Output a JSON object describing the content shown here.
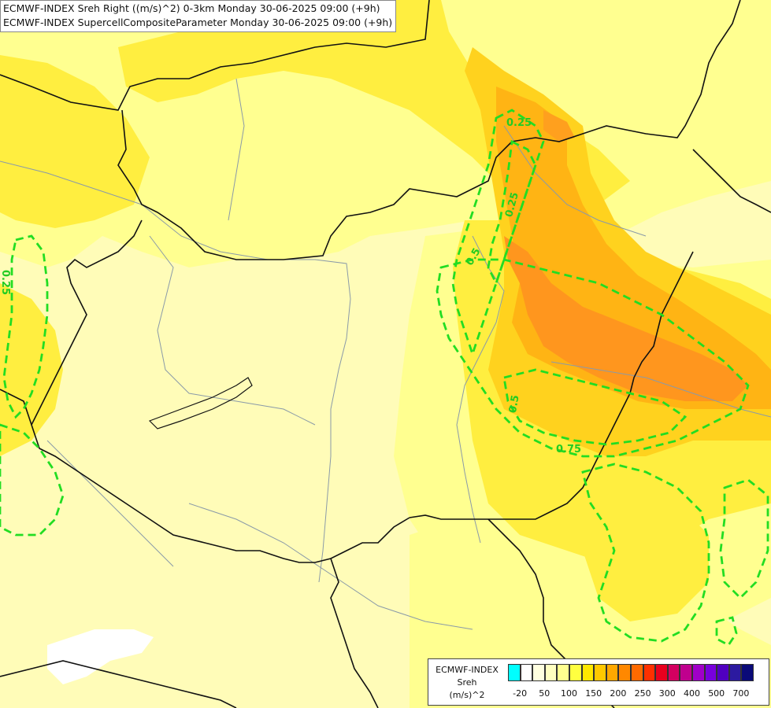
{
  "header": {
    "line1": "ECMWF-INDEX Sreh Right ((m/s)^2) 0-3km Monday 30-06-2025 09:00 (+9h)",
    "line2": "ECMWF-INDEX SupercellCompositeParameter Monday 30-06-2025 09:00 (+9h)"
  },
  "contour_labels": [
    "0.25",
    "0.25",
    "0.5",
    "0.5",
    "0.75",
    "0.25"
  ],
  "legend": {
    "title_lines": [
      "ECMWF-INDEX",
      "Sreh",
      "(m/s)^2"
    ],
    "colors": [
      "#00ffff",
      "#ffffff",
      "#ffffe0",
      "#ffffc0",
      "#ffff90",
      "#ffff40",
      "#ffe800",
      "#ffc800",
      "#ffa800",
      "#ff8800",
      "#ff6a00",
      "#ff3000",
      "#e8001e",
      "#d40060",
      "#c0008e",
      "#a000c8",
      "#7800dc",
      "#5000c0",
      "#2c1aa0",
      "#0a0a78"
    ],
    "ticks": [
      "-20",
      "50",
      "100",
      "150",
      "200",
      "250",
      "300",
      "400",
      "500",
      "700"
    ],
    "colors_meaning": "fill colors of helicity classes"
  },
  "map_colors": {
    "pale": "#fffcb8",
    "light_yellow": "#ffff90",
    "yellow": "#ffee40",
    "gold": "#ffd21e",
    "orange": "#ffb414",
    "dark_orange": "#ff961e",
    "contour_green": "#22dd22",
    "border_black": "#111111",
    "river_gray": "#8a9aa8"
  }
}
